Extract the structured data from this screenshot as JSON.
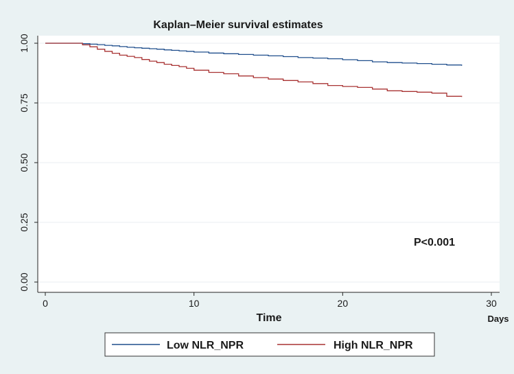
{
  "chart_data": {
    "type": "line",
    "title": "Kaplan–Meier survival estimates",
    "xlabel": "Time",
    "x_unit_label": "Days",
    "ylabel": "",
    "xlim": [
      0,
      30
    ],
    "ylim": [
      0,
      1
    ],
    "x_ticks": [
      0,
      10,
      20,
      30
    ],
    "x_tick_labels": [
      "0",
      "10",
      "20",
      "30"
    ],
    "y_ticks": [
      0,
      0.25,
      0.5,
      0.75,
      1.0
    ],
    "y_tick_labels": [
      "0.00",
      "0.25",
      "0.50",
      "0.75",
      "1.00"
    ],
    "grid": "horizontal",
    "legend_position": "bottom",
    "annotation": "P<0.001",
    "series": [
      {
        "name": "Low NLR_NPR",
        "color": "#1f4e8c",
        "x": [
          0,
          2,
          2.5,
          3,
          3.5,
          4,
          4.5,
          5,
          5.5,
          6,
          6.5,
          7,
          7.5,
          8,
          8.5,
          9,
          9.5,
          10,
          11,
          12,
          13,
          14,
          15,
          16,
          17,
          18,
          19,
          20,
          21,
          22,
          23,
          24,
          25,
          26,
          27,
          28
        ],
        "y": [
          1.0,
          1.0,
          0.998,
          0.996,
          0.994,
          0.991,
          0.989,
          0.986,
          0.983,
          0.981,
          0.979,
          0.977,
          0.975,
          0.972,
          0.97,
          0.968,
          0.966,
          0.963,
          0.959,
          0.956,
          0.953,
          0.95,
          0.947,
          0.944,
          0.94,
          0.938,
          0.935,
          0.931,
          0.927,
          0.922,
          0.919,
          0.917,
          0.915,
          0.912,
          0.909,
          0.906
        ]
      },
      {
        "name": "High NLR_NPR",
        "color": "#a83232",
        "x": [
          0,
          2,
          2.5,
          3,
          3.5,
          4,
          4.5,
          5,
          5.5,
          6,
          6.5,
          7,
          7.5,
          8,
          8.5,
          9,
          9.5,
          10,
          11,
          12,
          13,
          14,
          15,
          16,
          17,
          18,
          19,
          20,
          21,
          22,
          23,
          24,
          25,
          26,
          27,
          28
        ],
        "y": [
          1.0,
          1.0,
          0.993,
          0.985,
          0.975,
          0.966,
          0.958,
          0.95,
          0.945,
          0.94,
          0.932,
          0.925,
          0.919,
          0.912,
          0.907,
          0.902,
          0.895,
          0.887,
          0.878,
          0.872,
          0.863,
          0.856,
          0.85,
          0.844,
          0.838,
          0.831,
          0.823,
          0.819,
          0.815,
          0.808,
          0.801,
          0.798,
          0.795,
          0.791,
          0.778,
          0.775
        ]
      }
    ]
  }
}
